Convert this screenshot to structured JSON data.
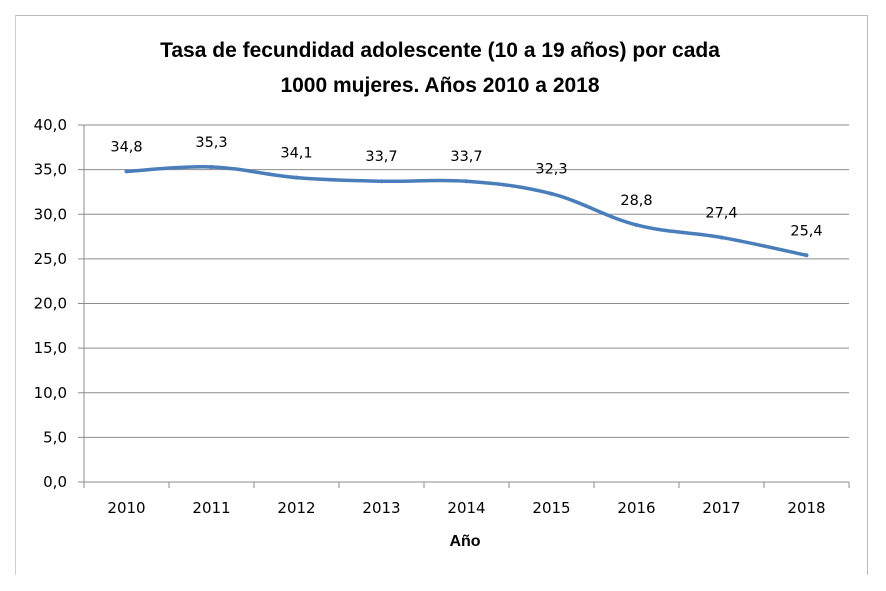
{
  "chart_data": {
    "type": "line",
    "title_lines": [
      "Tasa de fecundidad adolescente (10 a 19 años) por cada",
      "1000 mujeres. Años 2010 a 2018"
    ],
    "xlabel": "Año",
    "ylabel": "",
    "categories": [
      "2010",
      "2011",
      "2012",
      "2013",
      "2014",
      "2015",
      "2016",
      "2017",
      "2018"
    ],
    "series": [
      {
        "values": [
          34.8,
          35.3,
          34.1,
          33.7,
          33.7,
          32.3,
          28.8,
          27.4,
          25.4
        ],
        "labels": [
          "34,8",
          "35,3",
          "34,1",
          "33,7",
          "33,7",
          "32,3",
          "28,8",
          "27,4",
          "25,4"
        ]
      }
    ],
    "ylim": [
      0,
      40
    ],
    "yticks": [
      0,
      5,
      10,
      15,
      20,
      25,
      30,
      35,
      40
    ],
    "ytick_labels": [
      "0,0",
      "5,0",
      "10,0",
      "15,0",
      "20,0",
      "25,0",
      "30,0",
      "35,0",
      "40,0"
    ],
    "grid": true,
    "legend": "none",
    "line_color": "#4a7ebb",
    "grid_color": "#8c8c8c"
  }
}
